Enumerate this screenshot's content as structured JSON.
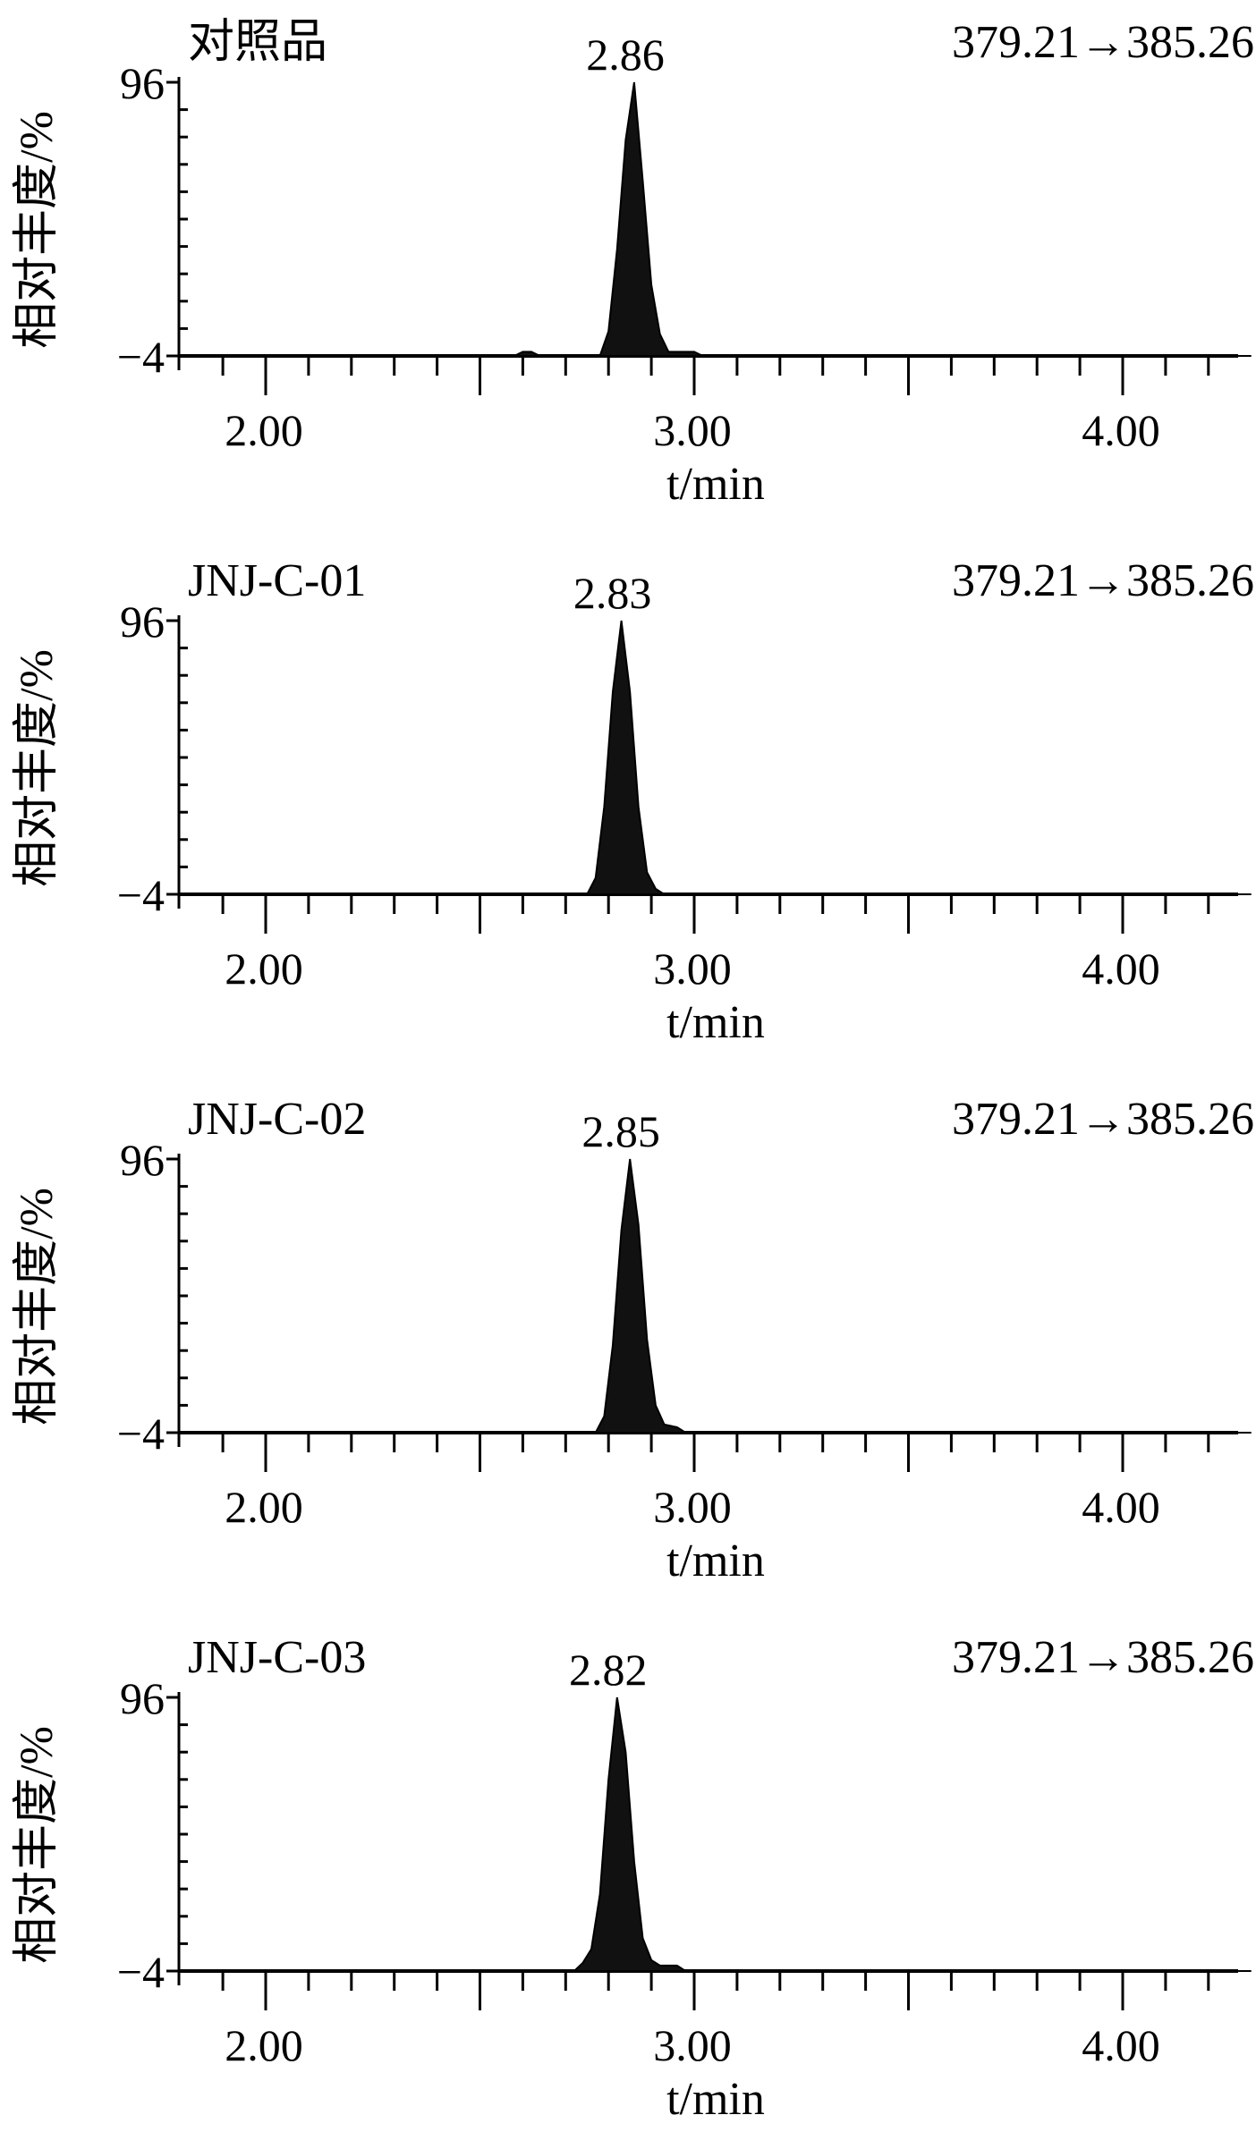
{
  "chart_data": [
    {
      "type": "line",
      "sample_label": "对照品",
      "transition": "379.21→385.26",
      "peak_label": "2.86",
      "peak_rt": 2.86,
      "xlabel": "t/min",
      "ylabel": "相对丰度/%",
      "x_ticks": [
        "2.00",
        "3.00",
        "4.00"
      ],
      "y_ticks": [
        "96",
        "−4"
      ],
      "xlim": [
        1.9,
        4.3
      ],
      "ylim": [
        -4,
        96
      ],
      "series": [
        {
          "x": [
            1.9,
            2.58,
            2.6,
            2.62,
            2.64,
            2.78,
            2.8,
            2.82,
            2.84,
            2.86,
            2.88,
            2.9,
            2.92,
            2.94,
            2.96,
            3.0,
            3.02,
            4.3
          ],
          "y": [
            -4,
            -4,
            -2.5,
            -2.5,
            -4,
            -4,
            5,
            35,
            75,
            96,
            60,
            22,
            4,
            -2.5,
            -2.5,
            -2.5,
            -4,
            -4
          ]
        }
      ]
    },
    {
      "type": "line",
      "sample_label": "JNJ-C-01",
      "transition": "379.21→385.26",
      "peak_label": "2.83",
      "peak_rt": 2.83,
      "xlabel": "t/min",
      "ylabel": "相对丰度/%",
      "x_ticks": [
        "2.00",
        "3.00",
        "4.00"
      ],
      "y_ticks": [
        "96",
        "−4"
      ],
      "xlim": [
        1.9,
        4.3
      ],
      "ylim": [
        -4,
        96
      ],
      "series": [
        {
          "x": [
            1.9,
            2.75,
            2.77,
            2.79,
            2.81,
            2.83,
            2.85,
            2.87,
            2.89,
            2.91,
            2.93,
            4.3
          ],
          "y": [
            -4,
            -4,
            2,
            28,
            70,
            96,
            70,
            28,
            4,
            -2,
            -4,
            -4
          ]
        }
      ]
    },
    {
      "type": "line",
      "sample_label": "JNJ-C-02",
      "transition": "379.21→385.26",
      "peak_label": "2.85",
      "peak_rt": 2.85,
      "xlabel": "t/min",
      "ylabel": "相对丰度/%",
      "x_ticks": [
        "2.00",
        "3.00",
        "4.00"
      ],
      "y_ticks": [
        "96",
        "−4"
      ],
      "xlim": [
        1.9,
        4.3
      ],
      "ylim": [
        -4,
        96
      ],
      "series": [
        {
          "x": [
            1.9,
            2.77,
            2.79,
            2.81,
            2.83,
            2.85,
            2.87,
            2.89,
            2.91,
            2.93,
            2.96,
            2.98,
            4.3
          ],
          "y": [
            -4,
            -4,
            2,
            28,
            70,
            96,
            72,
            30,
            6,
            -1,
            -2,
            -4,
            -4
          ]
        }
      ]
    },
    {
      "type": "line",
      "sample_label": "JNJ-C-03",
      "transition": "379.21→385.26",
      "peak_label": "2.82",
      "peak_rt": 2.82,
      "xlabel": "t/min",
      "ylabel": "相对丰度/%",
      "x_ticks": [
        "2.00",
        "3.00",
        "4.00"
      ],
      "y_ticks": [
        "96",
        "−4"
      ],
      "xlim": [
        1.9,
        4.3
      ],
      "ylim": [
        -4,
        96
      ],
      "series": [
        {
          "x": [
            1.9,
            2.72,
            2.74,
            2.76,
            2.78,
            2.8,
            2.82,
            2.84,
            2.86,
            2.88,
            2.9,
            2.92,
            2.96,
            2.98,
            4.3
          ],
          "y": [
            -4,
            -4,
            -1,
            4,
            24,
            66,
            96,
            76,
            36,
            8,
            0,
            -2,
            -2,
            -4,
            -4
          ]
        }
      ]
    }
  ]
}
